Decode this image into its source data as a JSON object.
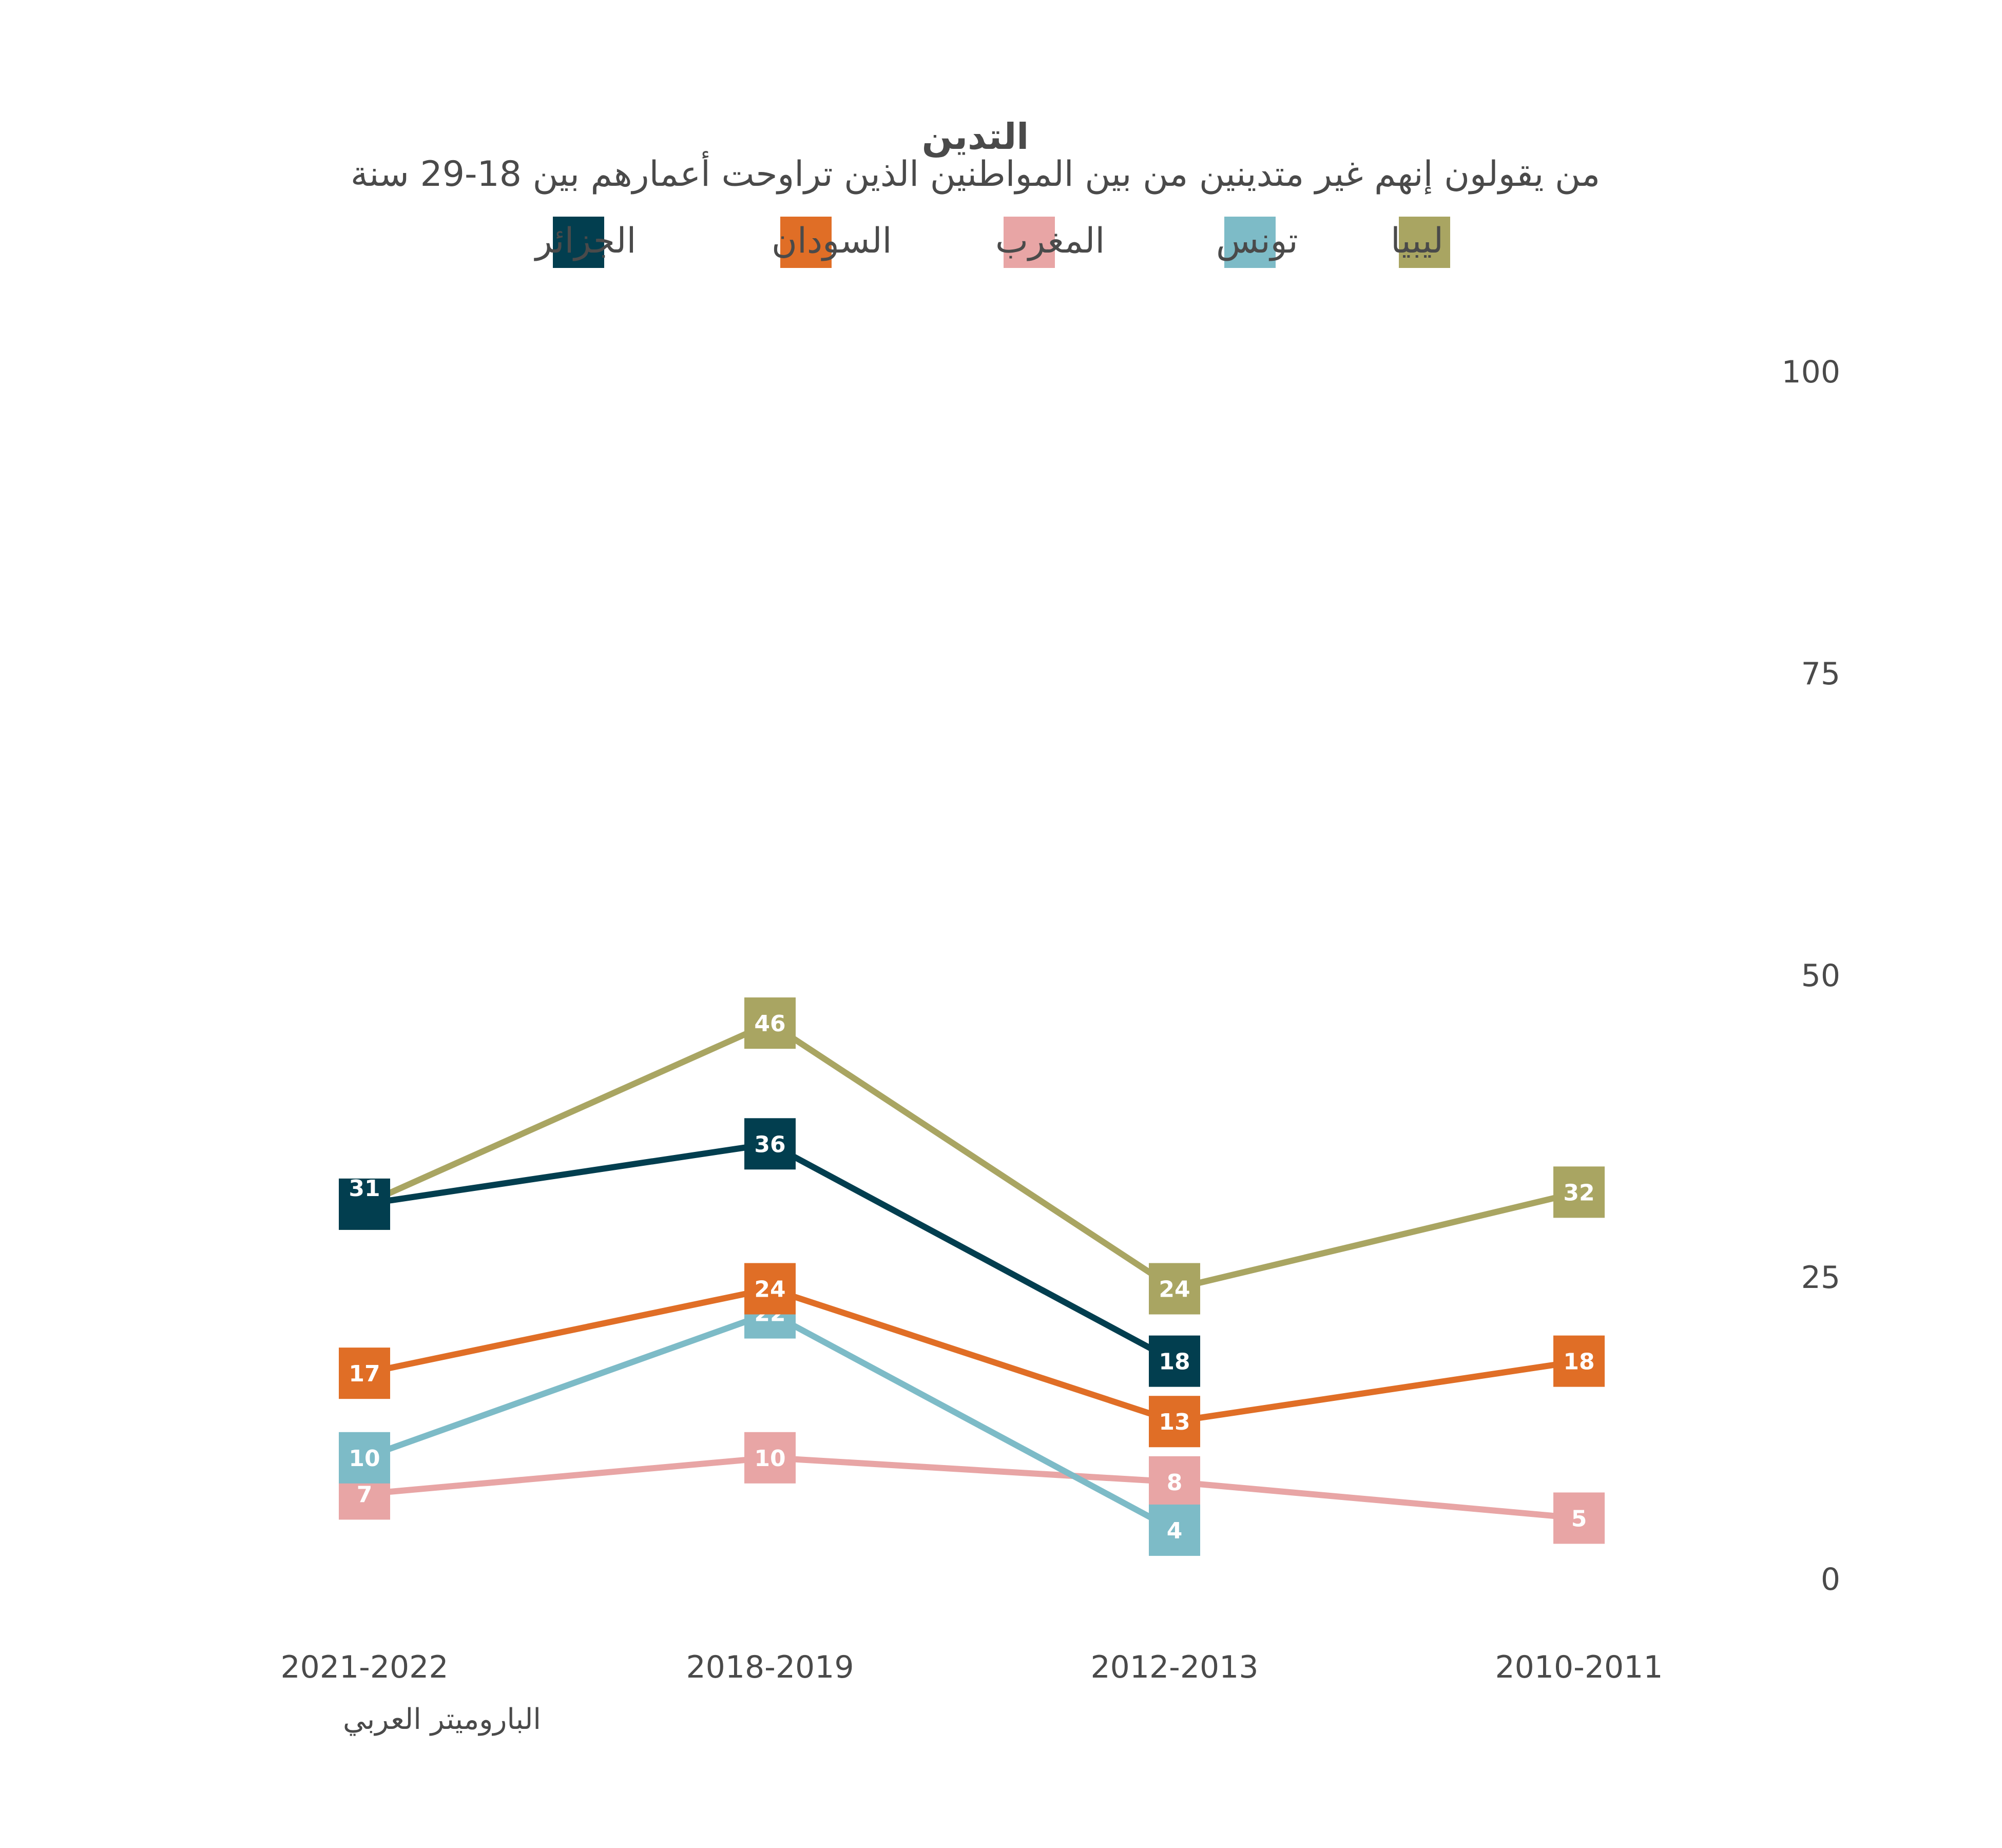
{
  "chart_data": {
    "type": "line",
    "title": "التدين",
    "subtitle": "من يقولون إنهم غير متدينين من بين المواطنين الذين تراوحت أعمارهم بين 18-29 سنة",
    "source": "الباروميتر العربي",
    "categories": [
      "2021-2022",
      "2018-2019",
      "2012-2013",
      "2010-2011"
    ],
    "ylim": [
      0,
      100
    ],
    "yticks": [
      0,
      25,
      50,
      75,
      100
    ],
    "grid": false,
    "legend_position": "top",
    "series": [
      {
        "name": "الجزائر",
        "color": "#023e4f",
        "values": [
          31,
          36,
          18,
          null
        ]
      },
      {
        "name": "ليبيا",
        "color": "#a9a562",
        "values": [
          31,
          46,
          24,
          32
        ]
      },
      {
        "name": "تونس",
        "color": "#7dbbc7",
        "values": [
          10,
          22,
          4,
          null
        ]
      },
      {
        "name": "المغرب",
        "color": "#e8a5a5",
        "values": [
          7,
          10,
          8,
          5
        ]
      },
      {
        "name": "السودان",
        "color": "#e06e26",
        "values": [
          17,
          24,
          13,
          18
        ]
      }
    ],
    "data_label_text": [
      [
        "31",
        "36",
        "18",
        ""
      ],
      [
        "",
        "46",
        "24",
        "32"
      ],
      [
        "10",
        "22",
        "4",
        ""
      ],
      [
        "7",
        "10",
        "8",
        "5"
      ],
      [
        "17",
        "24",
        "13",
        "18"
      ]
    ],
    "legend_order": [
      "الجزائر",
      "السودان",
      "المغرب",
      "تونس",
      "ليبيا"
    ]
  }
}
